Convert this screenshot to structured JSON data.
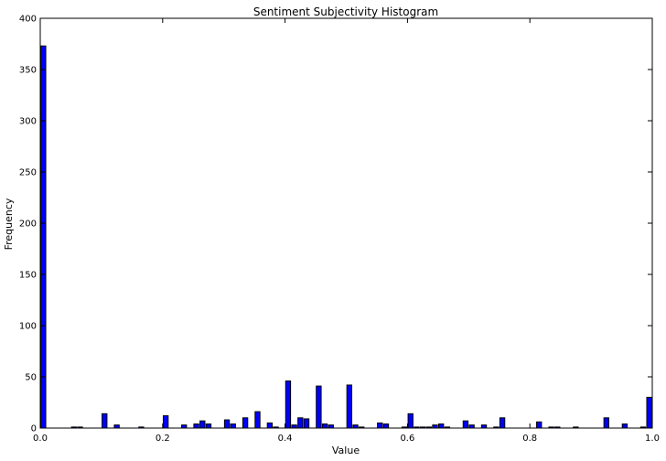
{
  "chart_data": {
    "type": "bar",
    "title": "Sentiment Subjectivity Histogram",
    "xlabel": "Value",
    "ylabel": "Frequency",
    "xlim": [
      0,
      1
    ],
    "ylim": [
      0,
      400
    ],
    "x_ticks": [
      "0.0",
      "0.2",
      "0.4",
      "0.6",
      "0.8",
      "1.0"
    ],
    "y_ticks": [
      "0",
      "50",
      "100",
      "150",
      "200",
      "250",
      "300",
      "350",
      "400"
    ],
    "bin_width": 0.01,
    "bin_edges_start": 0.0,
    "bar_color": "#0000ff",
    "edge_color": "#000000",
    "values": [
      373,
      0,
      0,
      0,
      0,
      1,
      1,
      0,
      0,
      0,
      14,
      0,
      3,
      0,
      0,
      0,
      1,
      0,
      0,
      0,
      12,
      0,
      0,
      3,
      0,
      4,
      7,
      4,
      0,
      0,
      8,
      4,
      0,
      10,
      0,
      16,
      0,
      5,
      1,
      0,
      46,
      3,
      10,
      9,
      0,
      41,
      4,
      3,
      0,
      0,
      42,
      3,
      1,
      0,
      0,
      5,
      4,
      0,
      0,
      1,
      14,
      1,
      1,
      1,
      3,
      4,
      1,
      0,
      0,
      7,
      3,
      0,
      3,
      0,
      1,
      10,
      0,
      0,
      0,
      0,
      0,
      6,
      0,
      1,
      1,
      0,
      0,
      1,
      0,
      0,
      0,
      0,
      10,
      0,
      0,
      4,
      0,
      0,
      1,
      30
    ]
  }
}
